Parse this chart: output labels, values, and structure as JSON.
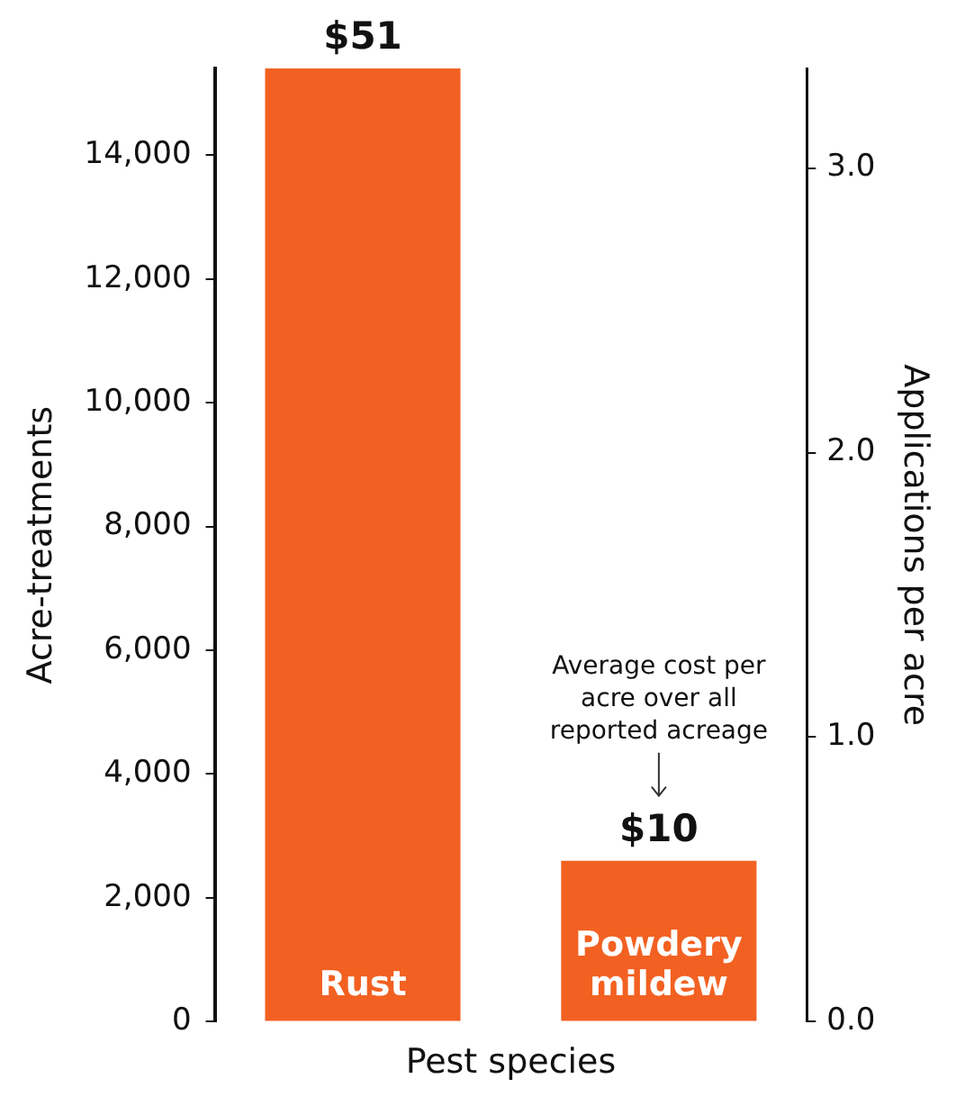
{
  "chart_data": {
    "type": "bar",
    "xlabel": "Pest species",
    "ylabel": "Acre-treatments",
    "y2label": "Applications per acre",
    "categories": [
      "Rust",
      "Powdery mildew"
    ],
    "values": [
      15400,
      2600
    ],
    "color": "#f26122",
    "ylim": [
      0,
      15400
    ],
    "yticks": [
      {
        "value": 0,
        "label": "0"
      },
      {
        "value": 2000,
        "label": "2,000"
      },
      {
        "value": 4000,
        "label": "4,000"
      },
      {
        "value": 6000,
        "label": "6,000"
      },
      {
        "value": 8000,
        "label": "8,000"
      },
      {
        "value": 10000,
        "label": "10,000"
      },
      {
        "value": 12000,
        "label": "12,000"
      },
      {
        "value": 14000,
        "label": "14,000"
      }
    ],
    "y2lim": [
      0,
      3.35
    ],
    "y2ticks": [
      {
        "value": 0,
        "label": "0.0"
      },
      {
        "value": 1,
        "label": "1.0"
      },
      {
        "value": 2,
        "label": "2.0"
      },
      {
        "value": 3,
        "label": "3.0"
      }
    ],
    "annotations": [
      {
        "text": "$51",
        "x": "Rust",
        "y": 15400
      },
      {
        "text": "$10",
        "x": "Powdery mildew",
        "y": 2600
      },
      "Average cost per acre over all reported acreage"
    ],
    "legend": false
  }
}
